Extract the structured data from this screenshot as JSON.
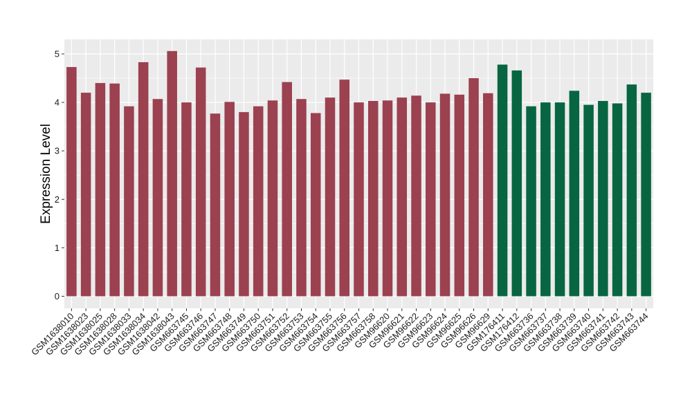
{
  "chart_data": {
    "type": "bar",
    "title": "",
    "xlabel": "",
    "ylabel": "Expression Level",
    "ylim": [
      -0.25,
      5.3
    ],
    "yticks": [
      0,
      1,
      2,
      3,
      4,
      5
    ],
    "grid": true,
    "legend": "none",
    "colors": {
      "group1": "#9b4150",
      "group2": "#076641",
      "panel_bg": "#ebebeb",
      "grid": "#ffffff"
    },
    "categories": [
      "GSM1638010",
      "GSM1638023",
      "GSM1638025",
      "GSM1638028",
      "GSM1638033",
      "GSM1638034",
      "GSM1638042",
      "GSM1638043",
      "GSM663745",
      "GSM663746",
      "GSM663747",
      "GSM663748",
      "GSM663749",
      "GSM663750",
      "GSM663751",
      "GSM663752",
      "GSM663753",
      "GSM663754",
      "GSM663755",
      "GSM663756",
      "GSM663757",
      "GSM663758",
      "GSM96620",
      "GSM96621",
      "GSM96622",
      "GSM96623",
      "GSM96624",
      "GSM96625",
      "GSM96626",
      "GSM96629",
      "GSM176411",
      "GSM176412",
      "GSM663736",
      "GSM663737",
      "GSM663738",
      "GSM663739",
      "GSM663740",
      "GSM663741",
      "GSM663742",
      "GSM663743",
      "GSM663744"
    ],
    "values": [
      4.73,
      4.2,
      4.4,
      4.39,
      3.92,
      4.83,
      4.07,
      5.06,
      4.0,
      4.72,
      3.77,
      4.01,
      3.8,
      3.92,
      4.04,
      4.42,
      4.07,
      3.78,
      4.1,
      4.47,
      4.0,
      4.03,
      4.04,
      4.1,
      4.14,
      4.0,
      4.18,
      4.16,
      4.5,
      4.19,
      4.78,
      4.66,
      3.92,
      4.0,
      4.0,
      4.24,
      3.95,
      4.03,
      3.98,
      4.37,
      4.2
    ],
    "groups": [
      1,
      1,
      1,
      1,
      1,
      1,
      1,
      1,
      1,
      1,
      1,
      1,
      1,
      1,
      1,
      1,
      1,
      1,
      1,
      1,
      1,
      1,
      1,
      1,
      1,
      1,
      1,
      1,
      1,
      1,
      2,
      2,
      2,
      2,
      2,
      2,
      2,
      2,
      2,
      2,
      2
    ]
  }
}
